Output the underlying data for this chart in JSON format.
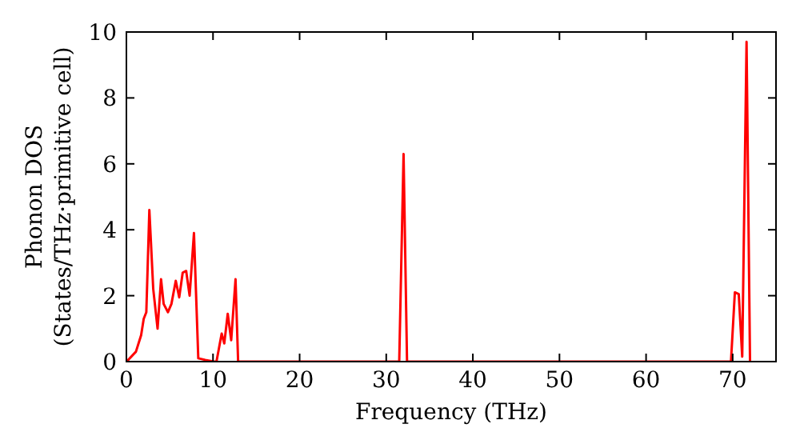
{
  "chart_data": {
    "type": "line",
    "xlabel": "Frequency (THz)",
    "ylabel": "Phonon DOS\n(States/THz·primitive cell)",
    "series": [
      {
        "color": "#ff0000",
        "x": [
          0,
          0.2,
          1.1,
          1.7,
          2.0,
          2.3,
          2.65,
          3.1,
          3.6,
          4.0,
          4.3,
          4.8,
          5.2,
          5.7,
          6.1,
          6.5,
          6.9,
          7.3,
          7.8,
          8.3,
          9.1,
          10.1,
          10.4,
          11.0,
          11.3,
          11.7,
          12.1,
          12.6,
          12.9,
          31.5,
          32.0,
          32.4,
          69.8,
          70.25,
          70.7,
          71.1,
          71.6,
          72.0
        ],
        "values": [
          0,
          0.05,
          0.3,
          0.8,
          1.3,
          1.5,
          4.6,
          2.2,
          1.0,
          2.5,
          1.75,
          1.5,
          1.75,
          2.45,
          1.95,
          2.7,
          2.75,
          2.0,
          3.9,
          0.1,
          0.05,
          0,
          0,
          0.85,
          0.55,
          1.45,
          0.65,
          2.5,
          0,
          0,
          6.3,
          0,
          0,
          2.1,
          2.05,
          0.15,
          9.7,
          0
        ]
      }
    ],
    "xlim": [
      0,
      75
    ],
    "ylim": [
      0,
      10
    ],
    "xticks": [
      0,
      10,
      20,
      30,
      40,
      50,
      60,
      70
    ],
    "yticks": [
      0,
      2,
      4,
      6,
      8,
      10
    ],
    "grid": false,
    "line_style": "solid",
    "marker": "none"
  }
}
